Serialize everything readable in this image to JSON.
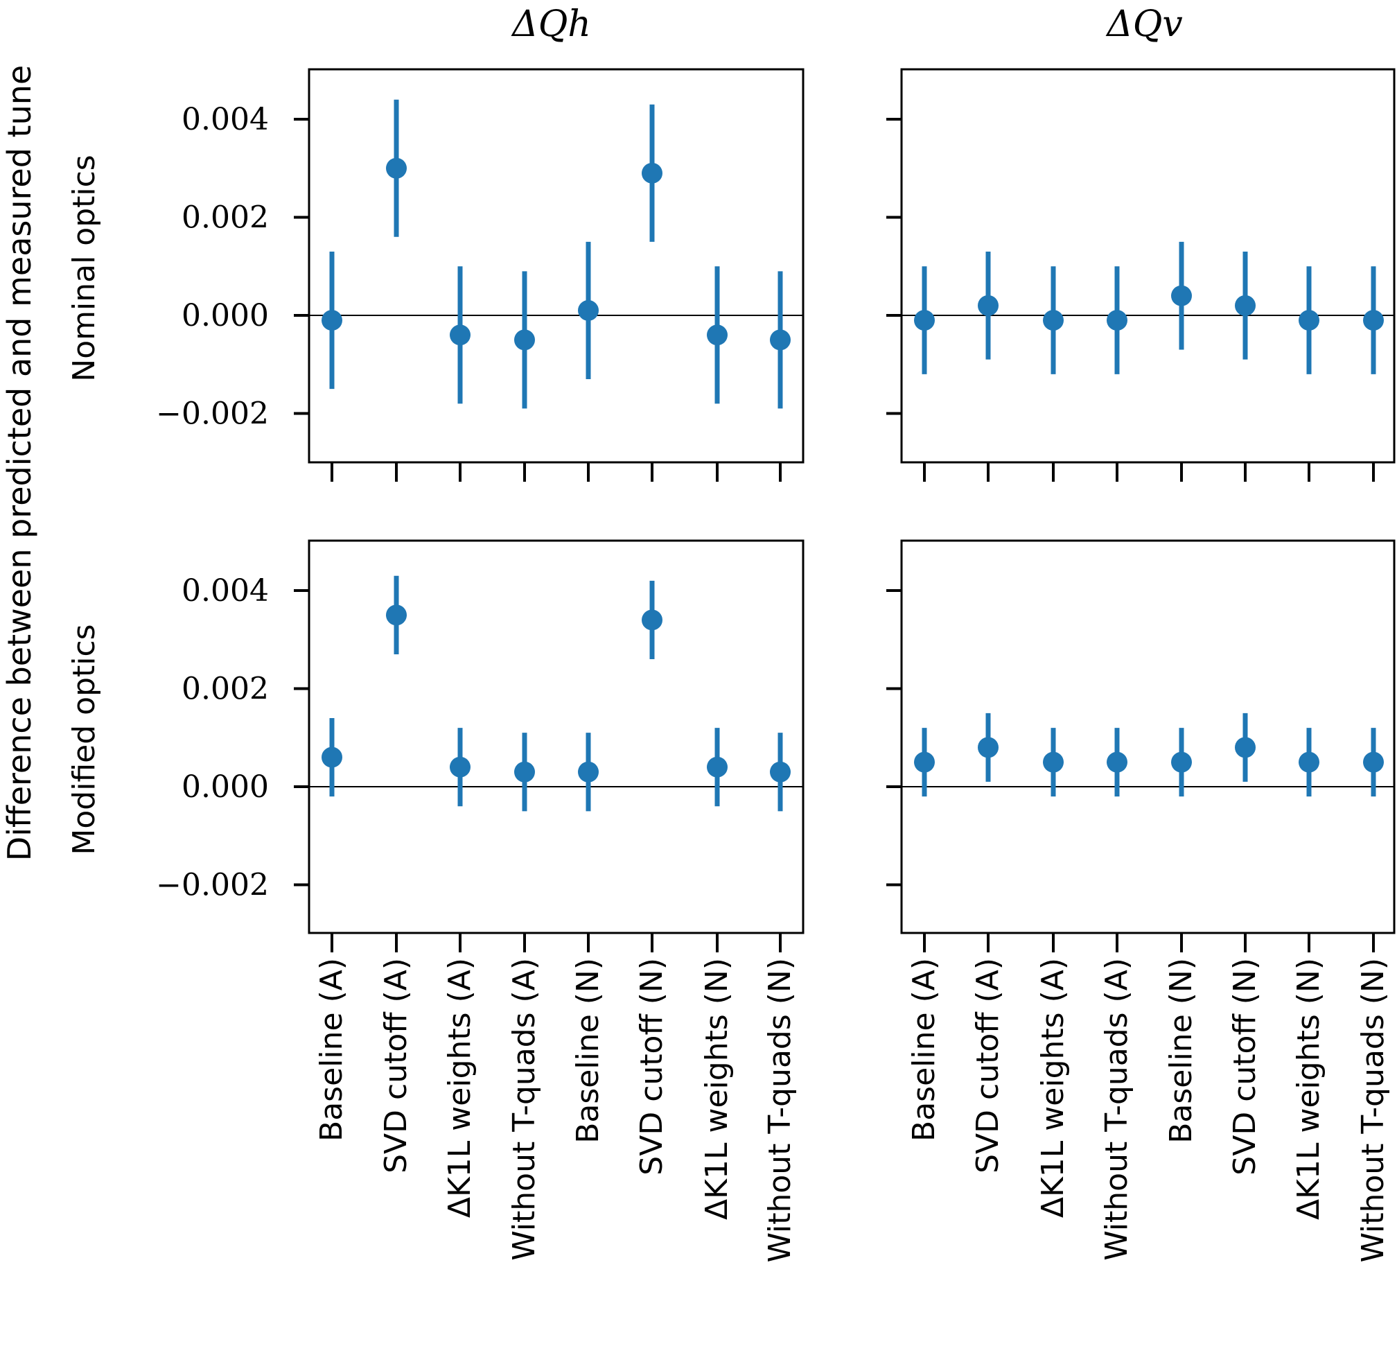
{
  "chart_data": {
    "type": "scatter",
    "subtype": "errorbar",
    "ylabel": "Difference between predicted and measured tune",
    "columns": [
      "ΔQh",
      "ΔQv"
    ],
    "rows": [
      "Nominal optics",
      "Modified optics"
    ],
    "categories": [
      "Baseline (A)",
      "SVD cutoff (A)",
      "ΔK1L weights (A)",
      "Without T-quads (A)",
      "Baseline (N)",
      "SVD cutoff (N)",
      "ΔK1L weights (N)",
      "Without T-quads (N)"
    ],
    "ylim": [
      -0.003,
      0.005
    ],
    "yticks": [
      -0.002,
      0.0,
      0.002,
      0.004
    ],
    "ytick_labels": [
      "−0.002",
      "0.000",
      "0.002",
      "0.004"
    ],
    "reference_line": 0.0,
    "marker_color": "#1f77b4",
    "panels": [
      {
        "row": "Nominal optics",
        "column": "ΔQh",
        "values": [
          -0.0001,
          0.003,
          -0.0004,
          -0.0005,
          0.0001,
          0.0029,
          -0.0004,
          -0.0005
        ],
        "errors": [
          0.0014,
          0.0014,
          0.0014,
          0.0014,
          0.0014,
          0.0014,
          0.0014,
          0.0014
        ]
      },
      {
        "row": "Nominal optics",
        "column": "ΔQv",
        "values": [
          -0.0001,
          0.0002,
          -0.0001,
          -0.0001,
          0.0004,
          0.0002,
          -0.0001,
          -0.0001
        ],
        "errors": [
          0.0011,
          0.0011,
          0.0011,
          0.0011,
          0.0011,
          0.0011,
          0.0011,
          0.0011
        ]
      },
      {
        "row": "Modified optics",
        "column": "ΔQh",
        "values": [
          0.0006,
          0.0035,
          0.0004,
          0.0003,
          0.0003,
          0.0034,
          0.0004,
          0.0003
        ],
        "errors": [
          0.0008,
          0.0008,
          0.0008,
          0.0008,
          0.0008,
          0.0008,
          0.0008,
          0.0008
        ]
      },
      {
        "row": "Modified optics",
        "column": "ΔQv",
        "values": [
          0.0005,
          0.0008,
          0.0005,
          0.0005,
          0.0005,
          0.0008,
          0.0005,
          0.0005
        ],
        "errors": [
          0.0007,
          0.0007,
          0.0007,
          0.0007,
          0.0007,
          0.0007,
          0.0007,
          0.0007
        ]
      }
    ]
  }
}
